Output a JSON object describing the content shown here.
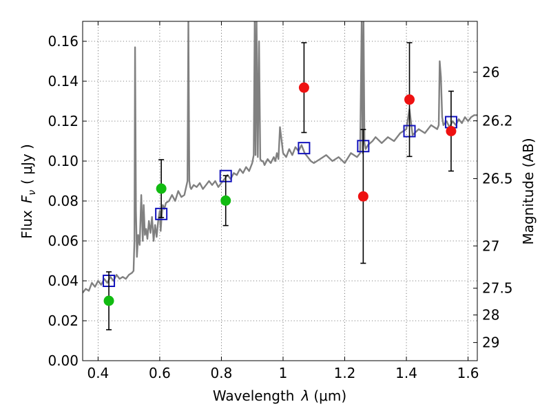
{
  "chart_data": {
    "type": "scatter",
    "xlabel": "Wavelength",
    "xlabel_symbol": "λ",
    "xlabel_unit": "(μm)",
    "ylabel": "Flux",
    "ylabel_symbol": "F",
    "ylabel_subscript": "ν",
    "ylabel_unit": "( μJy )",
    "y2label": "Magnitude (AB)",
    "xlim": [
      0.35,
      1.63
    ],
    "ylim": [
      0.0,
      0.17
    ],
    "grid": true,
    "x_ticks": [
      0.4,
      0.6,
      0.8,
      1.0,
      1.2,
      1.4,
      1.6
    ],
    "x_tick_labels": [
      "0.4",
      "0.6",
      "0.8",
      "1",
      "1.2",
      "1.4",
      "1.6"
    ],
    "y_ticks": [
      0.0,
      0.02,
      0.04,
      0.06,
      0.08,
      0.1,
      0.12,
      0.14,
      0.16
    ],
    "y_tick_labels": [
      "0.00",
      "0.02",
      "0.04",
      "0.06",
      "0.08",
      "0.10",
      "0.12",
      "0.14",
      "0.16"
    ],
    "y2_ticks": [
      {
        "label": "26",
        "flux": 0.1445
      },
      {
        "label": "26.2",
        "flux": 0.1202
      },
      {
        "label": "26.5",
        "flux": 0.0912
      },
      {
        "label": "27",
        "flux": 0.0575
      },
      {
        "label": "27.5",
        "flux": 0.0363
      },
      {
        "label": "28",
        "flux": 0.0229
      },
      {
        "label": "29",
        "flux": 0.0091
      }
    ],
    "colors": {
      "green": "#11bb11",
      "red": "#ee1111",
      "model_box": "#1111bb",
      "spectrum": "#808080",
      "errorbar": "#000000"
    },
    "series": [
      {
        "name": "photometry-green",
        "marker": "circle",
        "points": [
          {
            "x": 0.435,
            "y": 0.03,
            "yerr_low": 0.0145,
            "yerr_high": 0.0145
          },
          {
            "x": 0.605,
            "y": 0.0862,
            "yerr_low": 0.0145,
            "yerr_high": 0.0145
          },
          {
            "x": 0.814,
            "y": 0.0802,
            "yerr_low": 0.0125,
            "yerr_high": 0.0125
          }
        ]
      },
      {
        "name": "photometry-red",
        "marker": "circle",
        "points": [
          {
            "x": 1.068,
            "y": 0.1368,
            "yerr_low": 0.0225,
            "yerr_high": 0.0225
          },
          {
            "x": 1.26,
            "y": 0.0823,
            "yerr_low": 0.0335,
            "yerr_high": 0.0335
          },
          {
            "x": 1.41,
            "y": 0.1308,
            "yerr_low": 0.0285,
            "yerr_high": 0.0285
          },
          {
            "x": 1.545,
            "y": 0.115,
            "yerr_low": 0.02,
            "yerr_high": 0.02
          }
        ]
      },
      {
        "name": "model-bandpass",
        "marker": "open-square",
        "points": [
          {
            "x": 0.435,
            "y": 0.04
          },
          {
            "x": 0.605,
            "y": 0.0735
          },
          {
            "x": 0.814,
            "y": 0.0925
          },
          {
            "x": 1.068,
            "y": 0.1065
          },
          {
            "x": 1.26,
            "y": 0.1075
          },
          {
            "x": 1.41,
            "y": 0.115
          },
          {
            "x": 1.545,
            "y": 0.1195
          }
        ]
      }
    ],
    "spectrum": {
      "name": "template-spectrum",
      "x": [
        0.35,
        0.36,
        0.37,
        0.38,
        0.39,
        0.4,
        0.41,
        0.42,
        0.43,
        0.44,
        0.45,
        0.46,
        0.47,
        0.48,
        0.49,
        0.5,
        0.51,
        0.515,
        0.518,
        0.52,
        0.523,
        0.526,
        0.53,
        0.535,
        0.54,
        0.545,
        0.548,
        0.552,
        0.556,
        0.56,
        0.565,
        0.57,
        0.575,
        0.58,
        0.585,
        0.59,
        0.595,
        0.6,
        0.603,
        0.606,
        0.61,
        0.615,
        0.62,
        0.63,
        0.64,
        0.65,
        0.66,
        0.67,
        0.68,
        0.69,
        0.693,
        0.696,
        0.699,
        0.702,
        0.71,
        0.72,
        0.73,
        0.74,
        0.75,
        0.76,
        0.77,
        0.78,
        0.79,
        0.8,
        0.81,
        0.82,
        0.83,
        0.84,
        0.85,
        0.86,
        0.87,
        0.88,
        0.89,
        0.9,
        0.905,
        0.908,
        0.911,
        0.914,
        0.918,
        0.922,
        0.926,
        0.93,
        0.935,
        0.94,
        0.95,
        0.96,
        0.97,
        0.975,
        0.98,
        0.985,
        0.99,
        1.0,
        1.01,
        1.02,
        1.03,
        1.04,
        1.05,
        1.06,
        1.07,
        1.08,
        1.09,
        1.1,
        1.12,
        1.14,
        1.16,
        1.18,
        1.2,
        1.22,
        1.24,
        1.25,
        1.255,
        1.258,
        1.261,
        1.264,
        1.268,
        1.275,
        1.29,
        1.3,
        1.32,
        1.34,
        1.36,
        1.38,
        1.4,
        1.41,
        1.42,
        1.44,
        1.46,
        1.48,
        1.5,
        1.505,
        1.508,
        1.512,
        1.516,
        1.52,
        1.53,
        1.54,
        1.55,
        1.56,
        1.57,
        1.58,
        1.59,
        1.6,
        1.61,
        1.62,
        1.63
      ],
      "y": [
        0.034,
        0.036,
        0.035,
        0.039,
        0.037,
        0.04,
        0.038,
        0.041,
        0.039,
        0.042,
        0.04,
        0.043,
        0.041,
        0.042,
        0.041,
        0.043,
        0.044,
        0.045,
        0.06,
        0.157,
        0.075,
        0.052,
        0.063,
        0.058,
        0.083,
        0.06,
        0.078,
        0.063,
        0.066,
        0.061,
        0.07,
        0.064,
        0.072,
        0.06,
        0.068,
        0.062,
        0.07,
        0.075,
        0.065,
        0.072,
        0.078,
        0.076,
        0.079,
        0.08,
        0.083,
        0.08,
        0.085,
        0.082,
        0.083,
        0.09,
        0.17,
        0.09,
        0.087,
        0.086,
        0.088,
        0.087,
        0.089,
        0.086,
        0.088,
        0.09,
        0.088,
        0.09,
        0.087,
        0.089,
        0.091,
        0.093,
        0.091,
        0.094,
        0.093,
        0.096,
        0.094,
        0.097,
        0.095,
        0.099,
        0.103,
        0.17,
        0.103,
        0.17,
        0.102,
        0.16,
        0.101,
        0.1,
        0.1,
        0.098,
        0.101,
        0.099,
        0.102,
        0.1,
        0.104,
        0.101,
        0.117,
        0.104,
        0.102,
        0.106,
        0.103,
        0.107,
        0.105,
        0.108,
        0.104,
        0.102,
        0.1,
        0.099,
        0.101,
        0.103,
        0.1,
        0.102,
        0.099,
        0.104,
        0.102,
        0.104,
        0.17,
        0.104,
        0.17,
        0.109,
        0.106,
        0.108,
        0.11,
        0.112,
        0.109,
        0.112,
        0.11,
        0.114,
        0.116,
        0.126,
        0.113,
        0.116,
        0.114,
        0.118,
        0.116,
        0.118,
        0.15,
        0.142,
        0.122,
        0.118,
        0.12,
        0.117,
        0.12,
        0.118,
        0.121,
        0.119,
        0.122,
        0.12,
        0.122,
        0.123,
        0.123
      ]
    }
  }
}
